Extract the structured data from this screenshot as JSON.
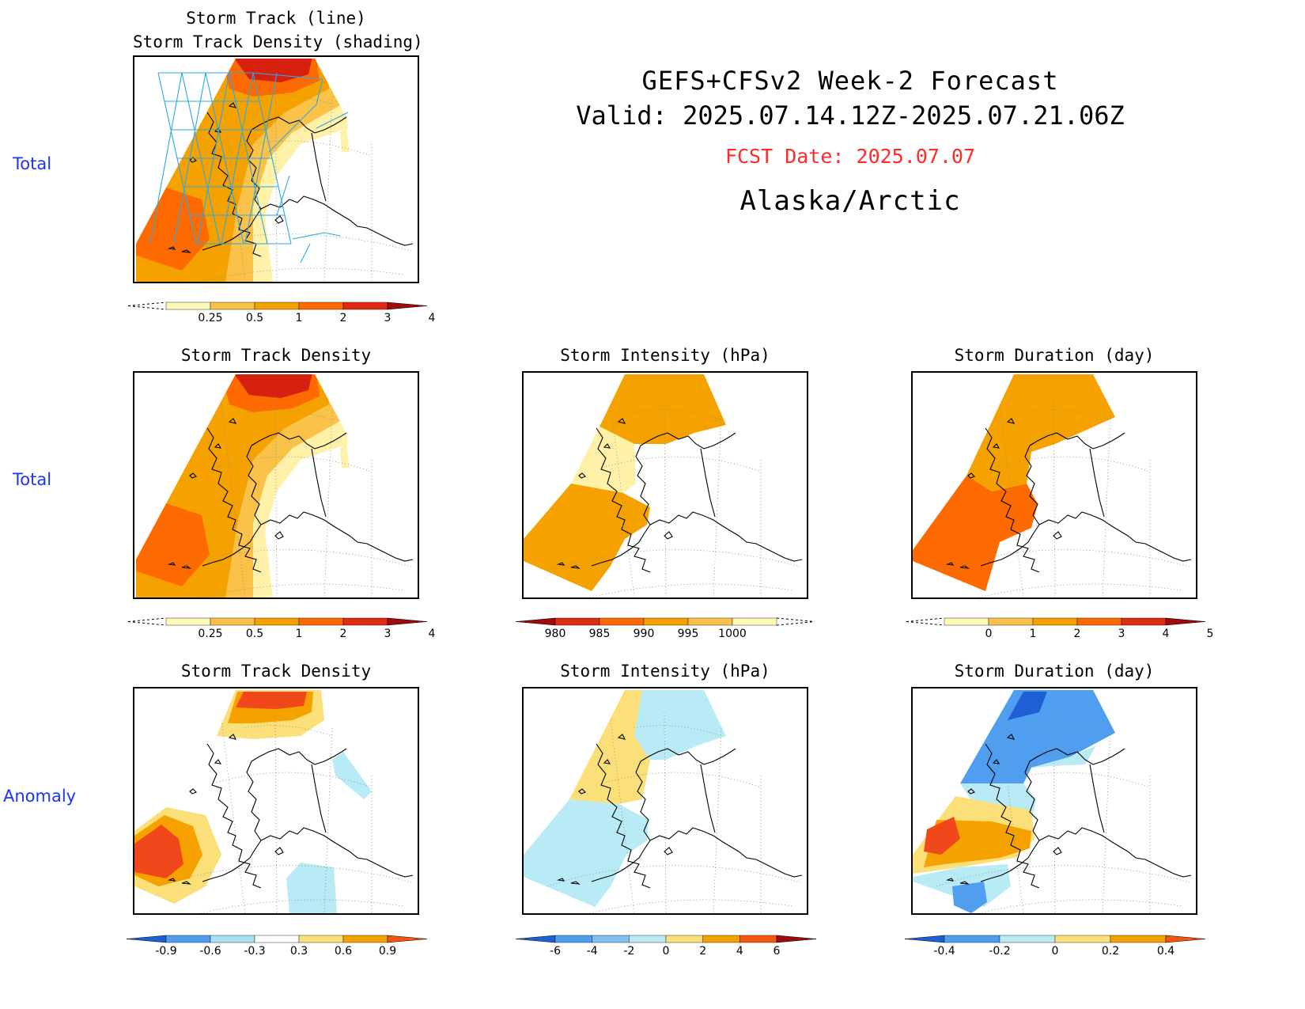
{
  "header": {
    "title": "GEFS+CFSv2 Week-2 Forecast",
    "valid": "Valid: 2025.07.14.12Z-2025.07.21.06Z",
    "fcst_date": "FCST Date: 2025.07.07",
    "region": "Alaska/Arctic",
    "fcst_color": "#ff2a2a"
  },
  "row_labels": [
    "Total",
    "Total",
    "Anomaly"
  ],
  "panels": [
    {
      "id": "p1",
      "title": "Storm Track (line)\nStorm Track Density (shading)",
      "colorbar": "cb_density"
    },
    {
      "id": "p2",
      "title": "Storm Track Density",
      "colorbar": "cb_density"
    },
    {
      "id": "p3",
      "title": "Storm Intensity (hPa)",
      "colorbar": "cb_intensity"
    },
    {
      "id": "p4",
      "title": "Storm Duration (day)",
      "colorbar": "cb_duration"
    },
    {
      "id": "p5",
      "title": "Storm Track Density",
      "colorbar": "cb_density_anom"
    },
    {
      "id": "p6",
      "title": "Storm Intensity (hPa)",
      "colorbar": "cb_intensity_anom"
    },
    {
      "id": "p7",
      "title": "Storm Duration (day)",
      "colorbar": "cb_duration_anom"
    }
  ],
  "colorbars": {
    "cb_density": {
      "labels": [
        "0.25",
        "0.5",
        "1",
        "2",
        "3",
        "4"
      ],
      "colors": [
        "#fff8b8",
        "#fbc24a",
        "#f5a200",
        "#ff6a00",
        "#e02a14",
        "#a00a0a"
      ],
      "left_ext": "dashed"
    },
    "cb_intensity": {
      "labels": [
        "980",
        "985",
        "990",
        "995",
        "1000"
      ],
      "colors": [
        "#a00a0a",
        "#e02a14",
        "#ff6a00",
        "#f5a200",
        "#fbc24a",
        "#fff8b8"
      ],
      "right_ext": "dashed"
    },
    "cb_duration": {
      "labels": [
        "0",
        "1",
        "2",
        "3",
        "4",
        "5"
      ],
      "colors": [
        "#fff8b8",
        "#fbc24a",
        "#f5a200",
        "#ff6a00",
        "#e02a14",
        "#a00a0a"
      ],
      "left_ext": "dashed"
    },
    "cb_density_anom": {
      "labels": [
        "-0.9",
        "-0.6",
        "-0.3",
        "0.3",
        "0.6",
        "0.9"
      ],
      "colors": [
        "#1f5fd6",
        "#4f9ef0",
        "#a9def5",
        "#ffffff",
        "#fbe07a",
        "#f5a200",
        "#f5560e"
      ]
    },
    "cb_intensity_anom": {
      "labels": [
        "-6",
        "-4",
        "-2",
        "0",
        "2",
        "4",
        "6"
      ],
      "colors": [
        "#1f5fd6",
        "#4f9ef0",
        "#7fc0f2",
        "#b8ebf5",
        "#fbe07a",
        "#f5a200",
        "#f5560e",
        "#a00a0a"
      ]
    },
    "cb_duration_anom": {
      "labels": [
        "-0.4",
        "-0.2",
        "0",
        "0.2",
        "0.4"
      ],
      "colors": [
        "#1f5fd6",
        "#4f9ef0",
        "#b8ebf5",
        "#fbe07a",
        "#f5a200",
        "#f5560e"
      ]
    }
  }
}
